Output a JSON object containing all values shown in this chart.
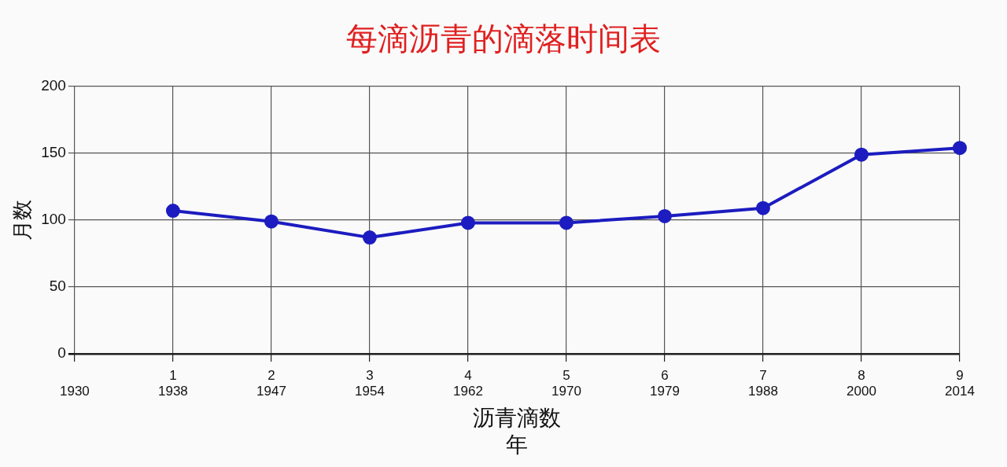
{
  "chart_data": {
    "type": "line",
    "title": "每滴沥青的滴落时间表",
    "xlabel": "沥青滴数",
    "annotations": [
      "年"
    ],
    "ylabel": "月数",
    "categories": [
      "\n1930",
      "1\n1938",
      "2\n1947",
      "3\n1954",
      "4\n1962",
      "5\n1970",
      "6\n1979",
      "7\n1988",
      "8\n2000",
      "9\n2014"
    ],
    "series": [
      {
        "color": "#1c1cc0",
        "values": [
          null,
          107,
          99,
          87,
          98,
          98,
          103,
          109,
          149,
          154
        ]
      }
    ],
    "ylim": [
      0,
      200
    ],
    "yticks": [
      0,
      50,
      100,
      150,
      200
    ],
    "grid": true,
    "legend": false,
    "marker": "circle",
    "line_style": "solid"
  }
}
